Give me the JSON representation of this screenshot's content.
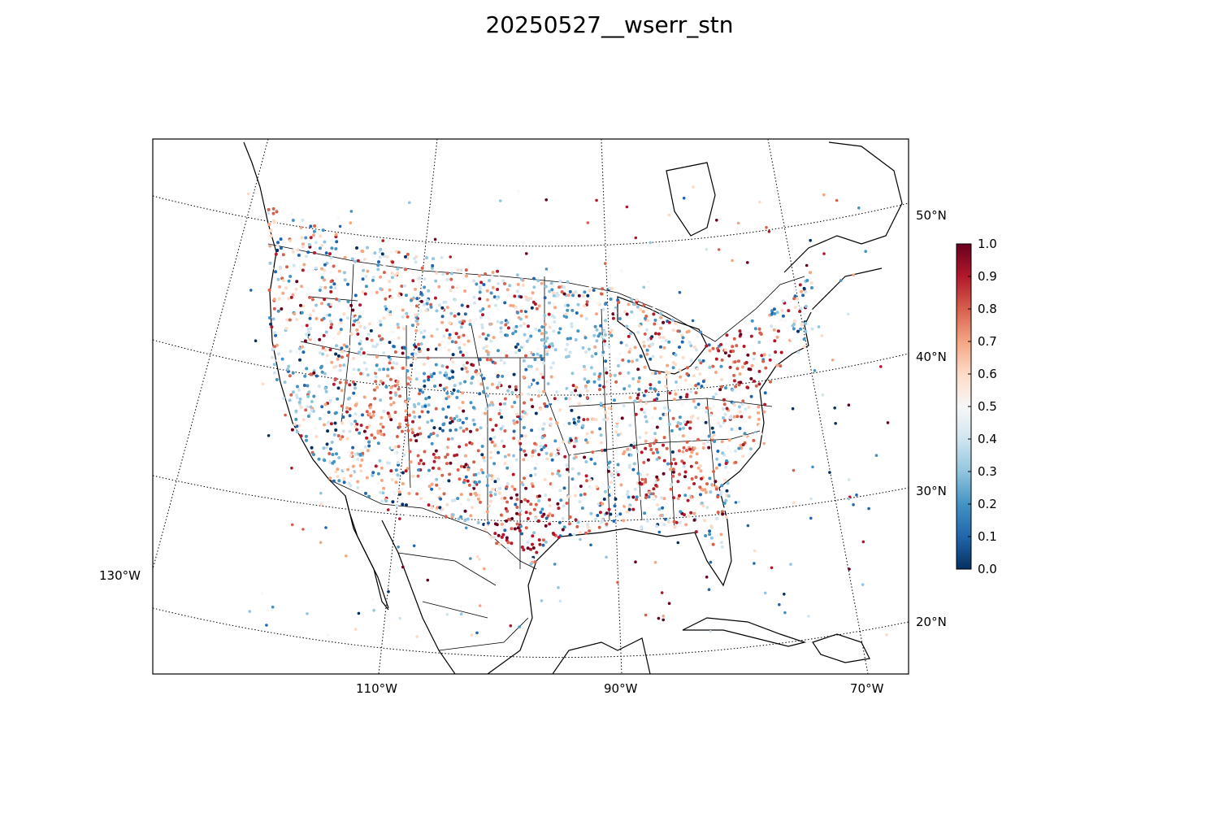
{
  "title": "20250527__wserr_stn",
  "map": {
    "projection": "lambert-conformal-conic",
    "lat_labels": [
      "50°N",
      "40°N",
      "30°N",
      "20°N"
    ],
    "lon_labels": [
      "130°W",
      "110°W",
      "90°W",
      "70°W"
    ],
    "graticule_style": "dotted",
    "stations": "scatter points colored by value 0-1"
  },
  "colorbar": {
    "colormap": "RdBu_r",
    "ticks": [
      "0.0",
      "0.1",
      "0.2",
      "0.3",
      "0.4",
      "0.5",
      "0.6",
      "0.7",
      "0.8",
      "0.9",
      "1.0"
    ],
    "low_color": "#053061",
    "mid_color": "#f7f7f7",
    "high_color": "#67001f"
  }
}
